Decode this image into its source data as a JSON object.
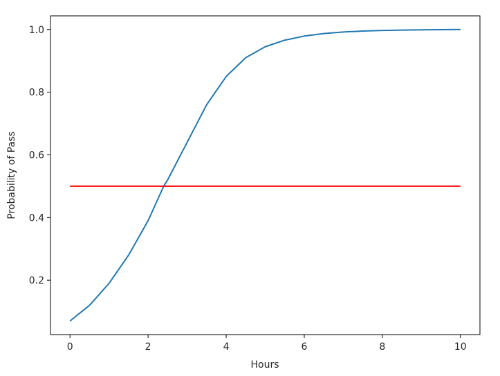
{
  "chart_data": {
    "type": "line",
    "title": "",
    "xlabel": "Hours",
    "ylabel": "Probability of Pass",
    "xlim": [
      -0.5,
      10.5
    ],
    "ylim": [
      0.0265,
      1.0435
    ],
    "xticks": [
      0,
      2,
      4,
      6,
      8,
      10
    ],
    "yticks": [
      0.2,
      0.4,
      0.6,
      0.8,
      1.0
    ],
    "xtick_labels": [
      "0",
      "2",
      "4",
      "6",
      "8",
      "10"
    ],
    "ytick_labels": [
      "0.2",
      "0.4",
      "0.6",
      "0.8",
      "1.0"
    ],
    "grid": false,
    "legend": "none",
    "series": [
      {
        "color": "#1f77b4",
        "x": [
          0,
          0.5,
          1,
          1.5,
          2,
          2.4,
          2.5,
          3,
          3.5,
          4,
          4.5,
          5,
          5.5,
          6,
          6.5,
          7,
          7.5,
          8,
          8.5,
          9,
          9.5,
          10
        ],
        "y": [
          0.07,
          0.12,
          0.19,
          0.28,
          0.39,
          0.5,
          0.52,
          0.64,
          0.76,
          0.85,
          0.91,
          0.945,
          0.966,
          0.979,
          0.987,
          0.992,
          0.995,
          0.997,
          0.998,
          0.999,
          0.9995,
          1.0
        ]
      },
      {
        "color": "#ff0000",
        "x": [
          0,
          10
        ],
        "y": [
          0.5,
          0.5
        ]
      }
    ]
  }
}
